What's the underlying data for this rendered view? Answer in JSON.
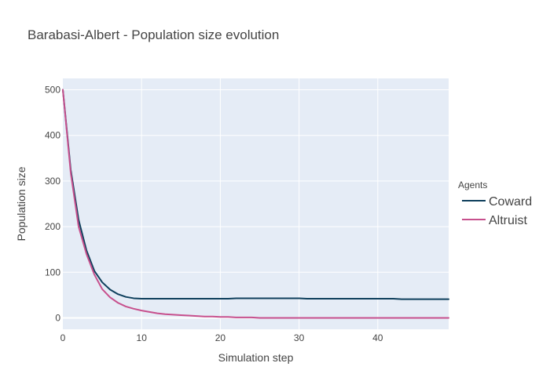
{
  "chart_data": {
    "type": "line",
    "title": "Barabasi-Albert - Population size evolution",
    "xlabel": "Simulation step",
    "ylabel": "Population size",
    "xlim": [
      0,
      49
    ],
    "ylim": [
      -25,
      525
    ],
    "x_ticks": [
      0,
      10,
      20,
      30,
      40
    ],
    "y_ticks": [
      0,
      100,
      200,
      300,
      400,
      500
    ],
    "grid": true,
    "legend_title": "Agents",
    "legend_position": "right",
    "x": [
      0,
      1,
      2,
      3,
      4,
      5,
      6,
      7,
      8,
      9,
      10,
      11,
      12,
      13,
      14,
      15,
      16,
      17,
      18,
      19,
      20,
      21,
      22,
      23,
      24,
      25,
      26,
      27,
      28,
      29,
      30,
      31,
      32,
      33,
      34,
      35,
      36,
      37,
      38,
      39,
      40,
      41,
      42,
      43,
      44,
      45,
      46,
      47,
      48,
      49
    ],
    "series": [
      {
        "name": "Coward",
        "color": "#0e3f5c",
        "values": [
          500,
          325,
          215,
          148,
          103,
          78,
          62,
          52,
          46,
          43,
          42,
          42,
          42,
          42,
          42,
          42,
          42,
          42,
          42,
          42,
          42,
          42,
          43,
          43,
          43,
          43,
          43,
          43,
          43,
          43,
          43,
          42,
          42,
          42,
          42,
          42,
          42,
          42,
          42,
          42,
          42,
          42,
          42,
          41,
          41,
          41,
          41,
          41,
          41,
          41
        ]
      },
      {
        "name": "Altruist",
        "color": "#c7508d",
        "values": [
          500,
          318,
          200,
          140,
          95,
          63,
          45,
          33,
          25,
          20,
          16,
          13,
          10,
          8,
          7,
          6,
          5,
          4,
          3,
          3,
          2,
          2,
          1,
          1,
          1,
          0,
          0,
          0,
          0,
          0,
          0,
          0,
          0,
          0,
          0,
          0,
          0,
          0,
          0,
          0,
          0,
          0,
          0,
          0,
          0,
          0,
          0,
          0,
          0,
          0
        ]
      }
    ]
  }
}
